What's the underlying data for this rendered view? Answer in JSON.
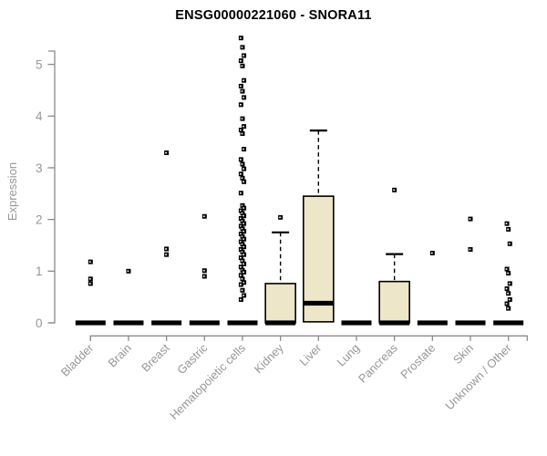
{
  "chart_data": {
    "type": "boxplot",
    "title": "ENSG00000221060 - SNORA11",
    "ylabel": "Expression",
    "xlabel": "",
    "yticks": [
      0,
      1,
      2,
      3,
      4,
      5
    ],
    "ylim": [
      0,
      5.55
    ],
    "grid": false,
    "legend": "none",
    "colors": {
      "box_fill": "#ede6c8",
      "box_stroke": "#000000",
      "axis": "#8a8a8a",
      "tick_text": "#969696",
      "title_text": "#000000"
    },
    "categories": [
      "Bladder",
      "Brain",
      "Breast",
      "Gastric",
      "Hematopoietic cells",
      "Kidney",
      "Liver",
      "Lung",
      "Pancreas",
      "Prostate",
      "Skin",
      "Unknown / Other"
    ],
    "boxes": [
      {
        "category": "Bladder",
        "q1": 0,
        "median": 0,
        "q3": 0,
        "whisker_low": 0,
        "whisker_high": 0,
        "outliers": [
          1.18,
          0.85,
          0.76
        ]
      },
      {
        "category": "Brain",
        "q1": 0,
        "median": 0,
        "q3": 0,
        "whisker_low": 0,
        "whisker_high": 0,
        "outliers": [
          1.0
        ]
      },
      {
        "category": "Breast",
        "q1": 0,
        "median": 0,
        "q3": 0,
        "whisker_low": 0,
        "whisker_high": 0,
        "outliers": [
          3.29,
          1.43,
          1.32
        ]
      },
      {
        "category": "Gastric",
        "q1": 0,
        "median": 0,
        "q3": 0,
        "whisker_low": 0,
        "whisker_high": 0,
        "outliers": [
          2.06,
          1.01,
          0.9
        ]
      },
      {
        "category": "Hematopoietic cells",
        "q1": 0,
        "median": 0,
        "q3": 0,
        "whisker_low": 0,
        "whisker_high": 0,
        "outliers": [
          5.51,
          5.33,
          5.17,
          5.07,
          4.97,
          4.69,
          4.58,
          4.48,
          4.36,
          4.22,
          3.95,
          3.8,
          3.73,
          3.66,
          3.36,
          3.16,
          3.07,
          2.98,
          2.88,
          2.8,
          2.73,
          2.51,
          2.27,
          2.22,
          2.17,
          2.12,
          2.07,
          2.02,
          1.97,
          1.92,
          1.87,
          1.82,
          1.77,
          1.72,
          1.67,
          1.62,
          1.57,
          1.52,
          1.47,
          1.42,
          1.37,
          1.32,
          1.26,
          1.2,
          1.14,
          1.08,
          1.02,
          0.98,
          0.92,
          0.85,
          0.78,
          0.74,
          0.63,
          0.53,
          0.45
        ]
      },
      {
        "category": "Kidney",
        "q1": 0,
        "median": 0,
        "q3": 0.76,
        "whisker_low": 0,
        "whisker_high": 1.75,
        "outliers": [
          2.04
        ]
      },
      {
        "category": "Liver",
        "q1": 0.02,
        "median": 0.38,
        "q3": 2.45,
        "whisker_low": 0.02,
        "whisker_high": 3.72,
        "outliers": []
      },
      {
        "category": "Lung",
        "q1": 0,
        "median": 0,
        "q3": 0,
        "whisker_low": 0,
        "whisker_high": 0,
        "outliers": []
      },
      {
        "category": "Pancreas",
        "q1": 0,
        "median": 0,
        "q3": 0.8,
        "whisker_low": 0,
        "whisker_high": 1.33,
        "outliers": [
          2.57
        ]
      },
      {
        "category": "Prostate",
        "q1": 0,
        "median": 0,
        "q3": 0,
        "whisker_low": 0,
        "whisker_high": 0,
        "outliers": [
          1.35
        ]
      },
      {
        "category": "Skin",
        "q1": 0,
        "median": 0,
        "q3": 0,
        "whisker_low": 0,
        "whisker_high": 0,
        "outliers": [
          2.01,
          1.42
        ]
      },
      {
        "category": "Unknown / Other",
        "q1": 0,
        "median": 0,
        "q3": 0,
        "whisker_low": 0,
        "whisker_high": 0,
        "outliers": [
          1.92,
          1.81,
          1.53,
          1.04,
          0.96,
          0.76,
          0.66,
          0.57,
          0.45,
          0.37,
          0.28
        ]
      }
    ]
  }
}
